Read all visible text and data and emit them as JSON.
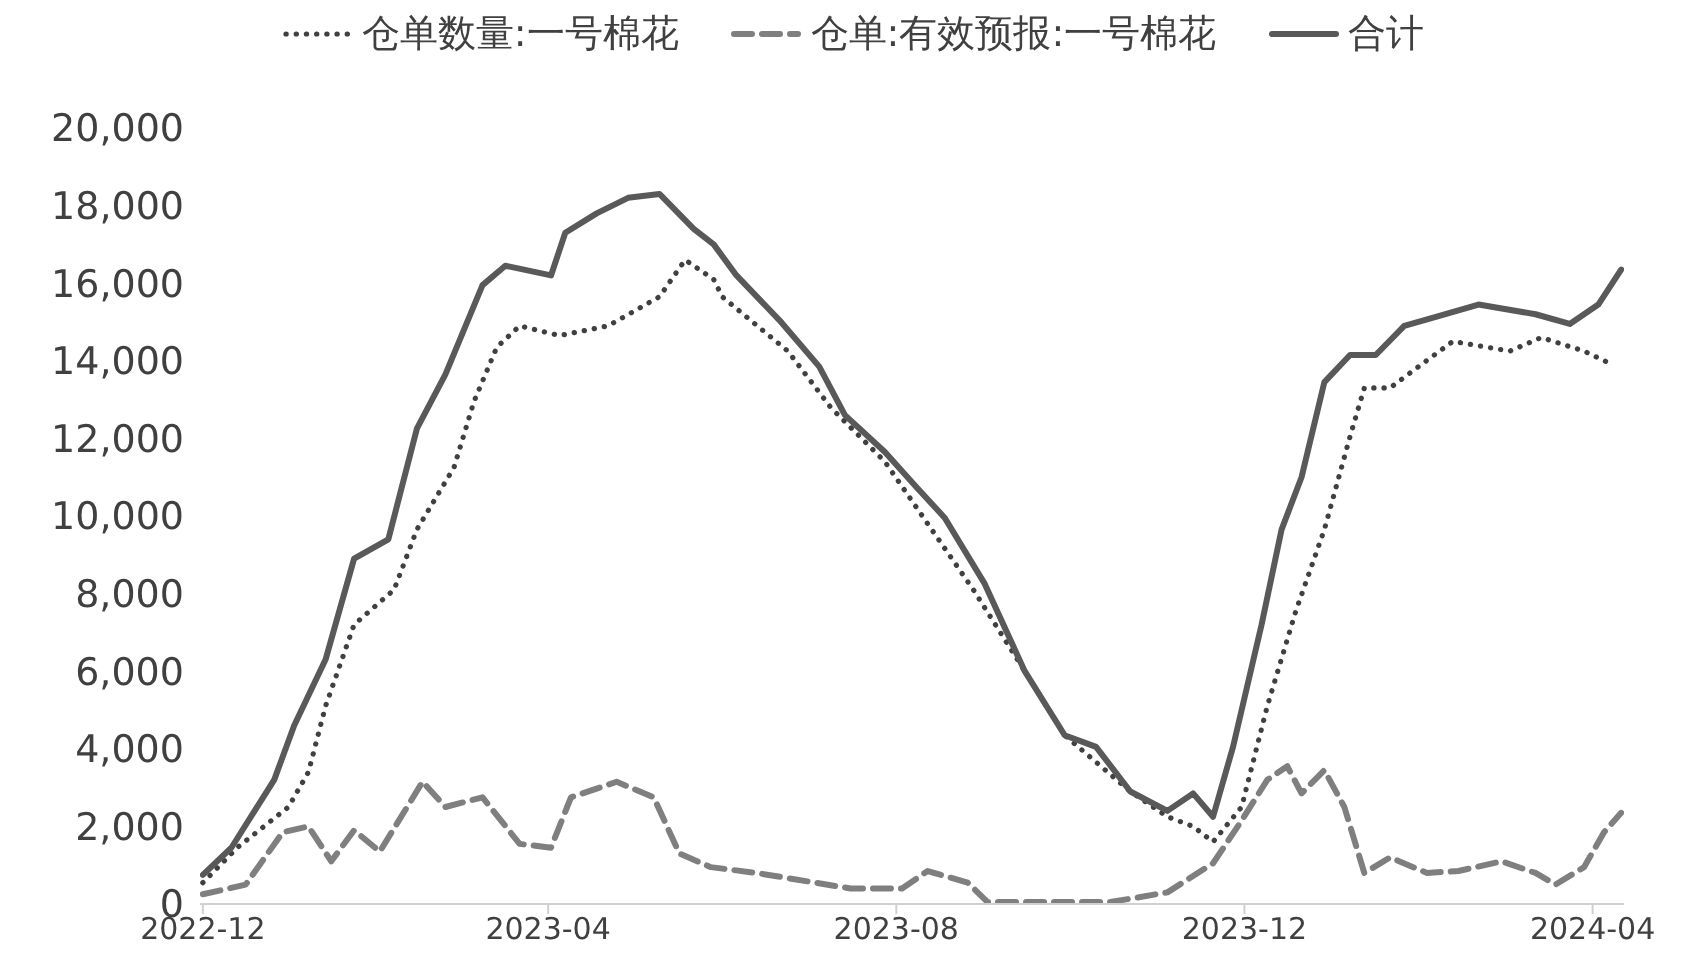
{
  "chart_data": {
    "type": "line",
    "xlim": [
      "2022-11-30",
      "2024-04-12"
    ],
    "xticks": [
      "2022-12",
      "2023-04",
      "2023-08",
      "2023-12",
      "2024-04"
    ],
    "ylim": [
      0,
      20000
    ],
    "yticks": [
      0,
      {
        "value": 2000,
        "label": "2,000"
      },
      {
        "value": 4000,
        "label": "4,000"
      },
      {
        "value": 6000,
        "label": "6,000"
      },
      {
        "value": 8000,
        "label": "8,000"
      },
      {
        "value": 10000,
        "label": "10,000"
      },
      {
        "value": 12000,
        "label": "12,000"
      },
      {
        "value": 14000,
        "label": "14,000"
      },
      {
        "value": 16000,
        "label": "16,000"
      },
      {
        "value": 18000,
        "label": "18,000"
      },
      {
        "value": 20000,
        "label": "20,000"
      }
    ],
    "legend": "top",
    "marker": "none",
    "series": [
      {
        "name": "仓单数量:一号棉花",
        "color": "#404040",
        "line_style": "dotted",
        "x": [
          "2022-12-01",
          "2022-12-13",
          "2022-12-31",
          "2023-01-07",
          "2023-01-13",
          "2023-01-23",
          "2023-02-06",
          "2023-02-14",
          "2023-02-27",
          "2023-03-06",
          "2023-03-14",
          "2023-03-22",
          "2023-04-05",
          "2023-04-22",
          "2023-05-10",
          "2023-05-19",
          "2023-05-29",
          "2023-06-01",
          "2023-06-24",
          "2023-07-09",
          "2023-07-28",
          "2023-08-12",
          "2023-08-28",
          "2023-09-15",
          "2023-09-29",
          "2023-10-22",
          "2023-11-04",
          "2023-11-13",
          "2023-11-20",
          "2023-11-30",
          "2023-12-09",
          "2023-12-19",
          "2023-12-29",
          "2024-01-07",
          "2024-01-12",
          "2024-01-21",
          "2024-01-31",
          "2024-02-12",
          "2024-03-03",
          "2024-03-14",
          "2024-03-29",
          "2024-04-08"
        ],
        "values": [
          550,
          1450,
          2500,
          3400,
          5100,
          7200,
          8100,
          9650,
          11250,
          12950,
          14350,
          14900,
          14650,
          14900,
          15650,
          16600,
          16100,
          15650,
          14250,
          12800,
          11400,
          9800,
          8100,
          6000,
          4350,
          2900,
          2250,
          2000,
          1600,
          2500,
          5100,
          7550,
          9650,
          12050,
          13300,
          13300,
          13850,
          14500,
          14250,
          14600,
          14250,
          13900
        ]
      },
      {
        "name": "仓单:有效预报:一号棉花",
        "color": "#7f7f7f",
        "line_style": "dashed",
        "x": [
          "2022-12-01",
          "2022-12-16",
          "2022-12-29",
          "2023-01-07",
          "2023-01-15",
          "2023-01-23",
          "2023-02-01",
          "2023-02-16",
          "2023-02-24",
          "2023-03-09",
          "2023-03-22",
          "2023-04-02",
          "2023-04-09",
          "2023-04-25",
          "2023-05-08",
          "2023-05-17",
          "2023-05-28",
          "2023-06-13",
          "2023-07-16",
          "2023-08-03",
          "2023-08-12",
          "2023-08-26",
          "2023-09-02",
          "2023-10-05",
          "2023-10-15",
          "2023-11-04",
          "2023-11-20",
          "2023-11-30",
          "2023-12-09",
          "2023-12-16",
          "2023-12-21",
          "2023-12-29",
          "2024-01-05",
          "2024-01-12",
          "2024-01-21",
          "2024-02-03",
          "2024-02-14",
          "2024-02-29",
          "2024-03-12",
          "2024-03-19",
          "2024-03-29",
          "2024-04-05",
          "2024-04-11"
        ],
        "values": [
          250,
          500,
          1850,
          2000,
          1100,
          1900,
          1350,
          3150,
          2500,
          2750,
          1550,
          1450,
          2750,
          3150,
          2750,
          1300,
          950,
          800,
          400,
          400,
          850,
          550,
          50,
          50,
          50,
          300,
          1050,
          2150,
          3200,
          3550,
          2850,
          3450,
          2500,
          800,
          1200,
          800,
          850,
          1100,
          800,
          500,
          950,
          1850,
          2350
        ]
      },
      {
        "name": "合计",
        "color": "#595959",
        "line_style": "solid",
        "x": [
          "2022-12-01",
          "2022-12-11",
          "2022-12-26",
          "2023-01-02",
          "2023-01-13",
          "2023-01-23",
          "2023-02-04",
          "2023-02-14",
          "2023-02-24",
          "2023-03-09",
          "2023-03-17",
          "2023-04-02",
          "2023-04-07",
          "2023-04-18",
          "2023-04-29",
          "2023-05-10",
          "2023-05-22",
          "2023-05-29",
          "2023-06-06",
          "2023-06-21",
          "2023-07-05",
          "2023-07-14",
          "2023-07-28",
          "2023-08-08",
          "2023-08-18",
          "2023-09-01",
          "2023-09-15",
          "2023-09-29",
          "2023-10-10",
          "2023-10-22",
          "2023-11-04",
          "2023-11-13",
          "2023-11-20",
          "2023-11-27",
          "2023-12-07",
          "2023-12-14",
          "2023-12-21",
          "2023-12-29",
          "2024-01-07",
          "2024-01-16",
          "2024-01-26",
          "2024-02-07",
          "2024-02-21",
          "2024-03-12",
          "2024-03-24",
          "2024-04-03",
          "2024-04-11"
        ],
        "values": [
          750,
          1450,
          3200,
          4600,
          6300,
          8900,
          9400,
          12250,
          13650,
          15950,
          16450,
          16200,
          17300,
          17800,
          18200,
          18300,
          17400,
          17000,
          16200,
          15050,
          13850,
          12600,
          11650,
          10750,
          9950,
          8250,
          6000,
          4350,
          4050,
          2900,
          2400,
          2850,
          2250,
          4050,
          7200,
          9650,
          11000,
          13450,
          14150,
          14150,
          14900,
          15150,
          15450,
          15200,
          14950,
          15450,
          16350
        ]
      }
    ]
  }
}
